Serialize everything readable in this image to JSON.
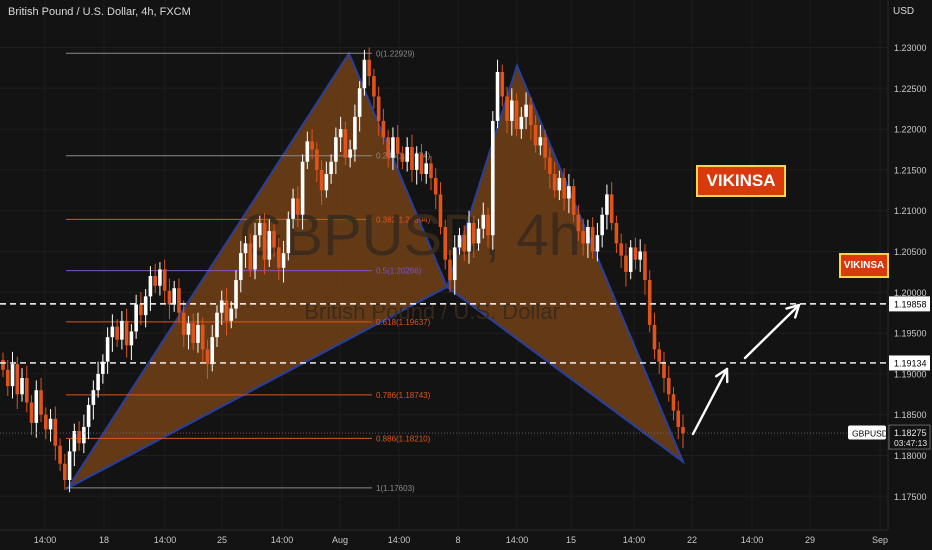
{
  "header": {
    "title": "British Pound / U.S. Dollar, 4h, FXCM",
    "currency": "USD"
  },
  "watermark": {
    "symbol": "GBPUSD, 4h",
    "name": "British Pound / U.S. Dollar"
  },
  "badges": {
    "large": "VIKINSA",
    "small": "VIKINSA"
  },
  "colors": {
    "background": "#131313",
    "up_candle": "#ffffff",
    "down_candle": "#e0541b",
    "pattern_fill": "#7a4516",
    "pattern_stroke": "#2a3f9a",
    "fib_orange": "#e0541b",
    "fib_purple": "#7b55c9",
    "fib_gray": "#8a8a8a"
  },
  "chart_data": {
    "type": "candlestick",
    "title": "British Pound / U.S. Dollar, 4h, FXCM",
    "y_axis_unit": "USD",
    "ylim": [
      1.1715,
      1.2335
    ],
    "y_ticks": [
      "1.23000",
      "1.22500",
      "1.22000",
      "1.21500",
      "1.21000",
      "1.20500",
      "1.20000",
      "1.19500",
      "1.19000",
      "1.18500",
      "1.18000",
      "1.17500"
    ],
    "x_ticks": [
      "14:00",
      "18",
      "14:00",
      "25",
      "14:00",
      "Aug",
      "14:00",
      "8",
      "14:00",
      "15",
      "14:00",
      "22",
      "14:00",
      "29",
      "Sep"
    ],
    "price_labels": [
      {
        "label": "",
        "value": "1.19858",
        "y": 1.19858
      },
      {
        "label": "",
        "value": "1.19134",
        "y": 1.19134
      },
      {
        "label": "GBPUSD",
        "value": "1.18275",
        "extra": "03:47:13",
        "y": 1.18275
      }
    ],
    "fib_levels": [
      {
        "label": "0(1.22929)",
        "value": 1.22929,
        "color": "gray"
      },
      {
        "label": "0.236(1.21674)",
        "value": 1.21674,
        "color": "gray"
      },
      {
        "label": "0.382(1.20894)",
        "value": 1.20894,
        "color": "orange"
      },
      {
        "label": "0.5(1.20266)",
        "value": 1.20266,
        "color": "purple"
      },
      {
        "label": "0.618(1.19637)",
        "value": 1.19637,
        "color": "orange"
      },
      {
        "label": "0.786(1.18743)",
        "value": 1.18743,
        "color": "orange"
      },
      {
        "label": "0.886(1.18210)",
        "value": 1.1821,
        "color": "orange"
      },
      {
        "label": "1(1.17603)",
        "value": 1.17603,
        "color": "gray"
      }
    ],
    "pattern_points": {
      "X": 1.17603,
      "A": 1.22929,
      "B": 1.20066,
      "C": 1.22777,
      "D": 1.17924
    },
    "candles_close": [
      1.1905,
      1.1885,
      1.1912,
      1.1875,
      1.1895,
      1.1865,
      1.184,
      1.188,
      1.185,
      1.1832,
      1.1845,
      1.1812,
      1.179,
      1.177,
      1.1805,
      1.183,
      1.1815,
      1.1835,
      1.1862,
      1.188,
      1.19,
      1.1915,
      1.1945,
      1.1958,
      1.1942,
      1.1965,
      1.1935,
      1.1952,
      1.1985,
      1.1972,
      1.1995,
      1.202,
      1.2008,
      1.2028,
      1.2002,
      1.1985,
      1.2005,
      1.1975,
      1.1948,
      1.1962,
      1.1938,
      1.196,
      1.193,
      1.1912,
      1.1945,
      1.1975,
      1.199,
      1.1965,
      1.198,
      1.2015,
      1.2048,
      1.206,
      1.2028,
      1.207,
      1.2085,
      1.204,
      1.2075,
      1.2055,
      1.203,
      1.2048,
      1.209,
      1.2115,
      1.2095,
      1.216,
      1.2185,
      1.2175,
      1.215,
      1.2125,
      1.2145,
      1.216,
      1.219,
      1.22,
      1.2165,
      1.2175,
      1.2215,
      1.225,
      1.2285,
      1.2265,
      1.224,
      1.221,
      1.219,
      1.2165,
      1.219,
      1.217,
      1.216,
      1.2178,
      1.215,
      1.217,
      1.2145,
      1.2158,
      1.214,
      1.212,
      1.208,
      1.204,
      1.2015,
      1.2055,
      1.207,
      1.205,
      1.2085,
      1.206,
      1.2078,
      1.2095,
      1.207,
      1.221,
      1.227,
      1.224,
      1.221,
      1.2235,
      1.22,
      1.2215,
      1.223,
      1.2205,
      1.218,
      1.219,
      1.2165,
      1.2145,
      1.2125,
      1.214,
      1.2115,
      1.213,
      1.2095,
      1.2075,
      1.206,
      1.208,
      1.205,
      1.207,
      1.2095,
      1.212,
      1.2085,
      1.206,
      1.2045,
      1.2025,
      1.2055,
      1.204,
      1.205,
      1.2015,
      1.196,
      1.193,
      1.1915,
      1.1895,
      1.1875,
      1.1855,
      1.1835,
      1.1827
    ]
  }
}
